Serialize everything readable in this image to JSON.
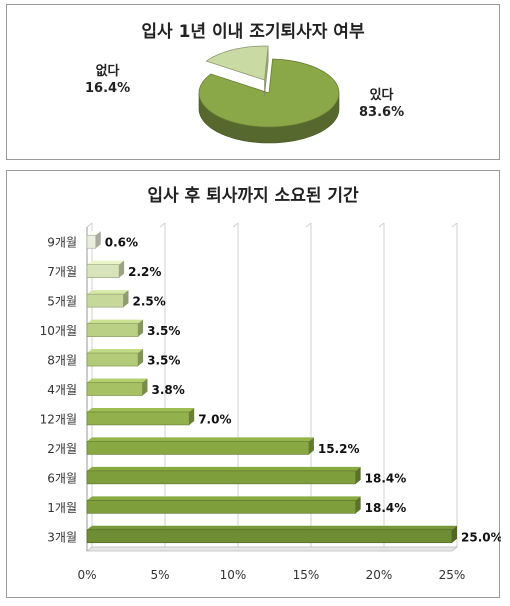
{
  "chart_data": [
    {
      "type": "pie",
      "title": "입사 1년 이내 조기퇴사자 여부",
      "categories": [
        "있다",
        "없다"
      ],
      "values": [
        83.6,
        16.4
      ],
      "labels": [
        "83.6%",
        "16.4%"
      ],
      "colors": [
        "#8aa848",
        "#c9dba3"
      ]
    },
    {
      "type": "bar",
      "orientation": "horizontal",
      "title": "입사 후 퇴사까지 소요된 기간",
      "categories": [
        "9개월",
        "7개월",
        "5개월",
        "10개월",
        "8개월",
        "4개월",
        "12개월",
        "2개월",
        "6개월",
        "1개월",
        "3개월"
      ],
      "values": [
        0.6,
        2.2,
        2.5,
        3.5,
        3.5,
        3.8,
        7.0,
        15.2,
        18.4,
        18.4,
        25.0
      ],
      "value_labels": [
        "0.6%",
        "2.2%",
        "2.5%",
        "3.5%",
        "3.5%",
        "3.8%",
        "7.0%",
        "15.2%",
        "18.4%",
        "18.4%",
        "25.0%"
      ],
      "xlim": [
        0,
        25
      ],
      "xticks": [
        "0%",
        "5%",
        "10%",
        "15%",
        "20%",
        "25%"
      ],
      "grid": true,
      "colors": [
        "#eaeede",
        "#d7e3b8",
        "#c6d89a",
        "#bad085",
        "#b3cb79",
        "#a6c164",
        "#92b04c",
        "#88a843",
        "#7e9e3c",
        "#7e9e3c",
        "#6f8d33"
      ]
    }
  ]
}
